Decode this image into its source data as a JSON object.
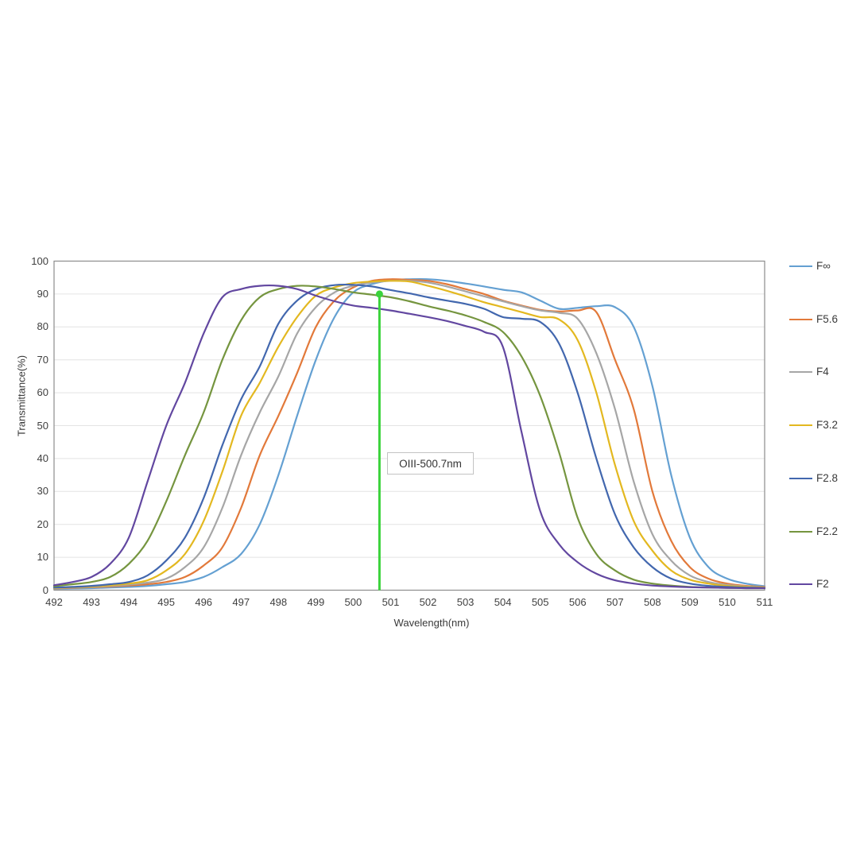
{
  "chart_data": {
    "type": "line",
    "title": "",
    "xlabel": "Wavelength(nm)",
    "ylabel": "Transmittance(%)",
    "xlim": [
      492,
      511
    ],
    "ylim": [
      0,
      100
    ],
    "grid": true,
    "legend_position": "right",
    "x_ticks": [
      492,
      493,
      494,
      495,
      496,
      497,
      498,
      499,
      500,
      501,
      502,
      503,
      504,
      505,
      506,
      507,
      508,
      509,
      510,
      511
    ],
    "y_ticks": [
      0,
      10,
      20,
      30,
      40,
      50,
      60,
      70,
      80,
      90,
      100
    ],
    "x": [
      492,
      492.5,
      493,
      493.5,
      494,
      494.5,
      495,
      495.5,
      496,
      496.5,
      497,
      497.5,
      498,
      498.5,
      499,
      499.5,
      500,
      500.5,
      501,
      501.5,
      502,
      502.5,
      503,
      503.5,
      504,
      504.5,
      505,
      505.5,
      506,
      506.5,
      507,
      507.5,
      508,
      508.5,
      509,
      509.5,
      510,
      510.5,
      511
    ],
    "series": [
      {
        "name": "F∞",
        "color": "#64a0d2",
        "values": [
          0.4,
          0.5,
          0.6,
          0.8,
          1,
          1.3,
          1.8,
          2.5,
          4,
          7,
          11,
          20,
          35,
          53,
          70,
          83,
          90.5,
          93,
          94.2,
          94.5,
          94.5,
          94,
          93.2,
          92.3,
          91.3,
          90.5,
          88,
          85.5,
          85.8,
          86.3,
          86,
          80,
          62,
          35,
          16,
          7,
          3.5,
          2,
          1.2
        ]
      },
      {
        "name": "F5.6",
        "color": "#e2793a",
        "values": [
          0.5,
          0.7,
          0.9,
          1.1,
          1.4,
          1.8,
          2.5,
          4,
          7.5,
          13,
          25,
          41,
          53,
          66,
          80,
          88,
          92,
          94,
          94.5,
          94.3,
          94,
          93,
          91.5,
          90,
          88,
          86.5,
          85.2,
          84.7,
          85,
          84.5,
          70,
          55,
          30,
          15,
          7,
          3.5,
          2,
          1.3,
          1
        ]
      },
      {
        "name": "F4",
        "color": "#a6a6a6",
        "values": [
          0.6,
          0.8,
          1,
          1.3,
          1.7,
          2.3,
          3.5,
          7,
          13,
          25,
          41,
          54,
          65,
          78,
          86,
          90.5,
          92.5,
          93.5,
          94,
          94,
          93.5,
          92.3,
          90.8,
          89.3,
          87.8,
          86.3,
          85,
          84.3,
          82.5,
          72,
          55,
          33,
          17,
          9,
          4.5,
          2.5,
          1.6,
          1.1,
          0.9
        ]
      },
      {
        "name": "F3.2",
        "color": "#e3b820",
        "values": [
          0.7,
          0.9,
          1.1,
          1.5,
          2,
          3,
          6,
          11,
          21,
          36,
          53,
          63,
          74,
          83,
          89.5,
          92,
          93.3,
          93.8,
          94,
          93.8,
          92.5,
          91,
          89.3,
          87.5,
          86,
          84.5,
          83,
          82.3,
          76,
          60,
          38,
          21,
          12,
          6,
          3.2,
          2,
          1.3,
          1,
          0.8
        ]
      },
      {
        "name": "F2.8",
        "color": "#4267ae",
        "values": [
          0.8,
          1,
          1.3,
          1.8,
          2.5,
          4.5,
          9,
          16,
          28,
          44,
          58,
          68,
          81,
          88,
          91.5,
          92.7,
          92.8,
          92.3,
          91.2,
          90.2,
          89,
          88,
          87,
          85.5,
          83,
          82.5,
          81.5,
          75,
          60,
          40,
          23,
          13,
          7,
          3.5,
          2,
          1.3,
          1,
          0.8,
          0.7
        ]
      },
      {
        "name": "F2.2",
        "color": "#75953f",
        "values": [
          1.2,
          1.8,
          2.5,
          4,
          8,
          15,
          27,
          41,
          54,
          70,
          82,
          89,
          91.5,
          92.5,
          92.3,
          91.5,
          90.5,
          89.8,
          89,
          87.8,
          86.3,
          85,
          83.5,
          81.5,
          78.5,
          71,
          59,
          42,
          22,
          11,
          6,
          3.2,
          2,
          1.4,
          1,
          0.8,
          0.7,
          0.6,
          0.6
        ]
      },
      {
        "name": "F2",
        "color": "#6247a0",
        "values": [
          1.5,
          2.5,
          4,
          8,
          16,
          33,
          50,
          63,
          78,
          89,
          91.5,
          92.5,
          92.5,
          91.5,
          89.5,
          87.8,
          86.5,
          85.8,
          85,
          84,
          83,
          81.8,
          80.3,
          78.5,
          74,
          48,
          24,
          14,
          8.5,
          5,
          3,
          2,
          1.4,
          1.1,
          0.9,
          0.8,
          0.7,
          0.6,
          0.6
        ]
      }
    ],
    "annotation": {
      "label": "OIII-500.7nm",
      "x_value": 500.7,
      "line_top_value": 90,
      "line_color": "#3bd33b"
    }
  }
}
